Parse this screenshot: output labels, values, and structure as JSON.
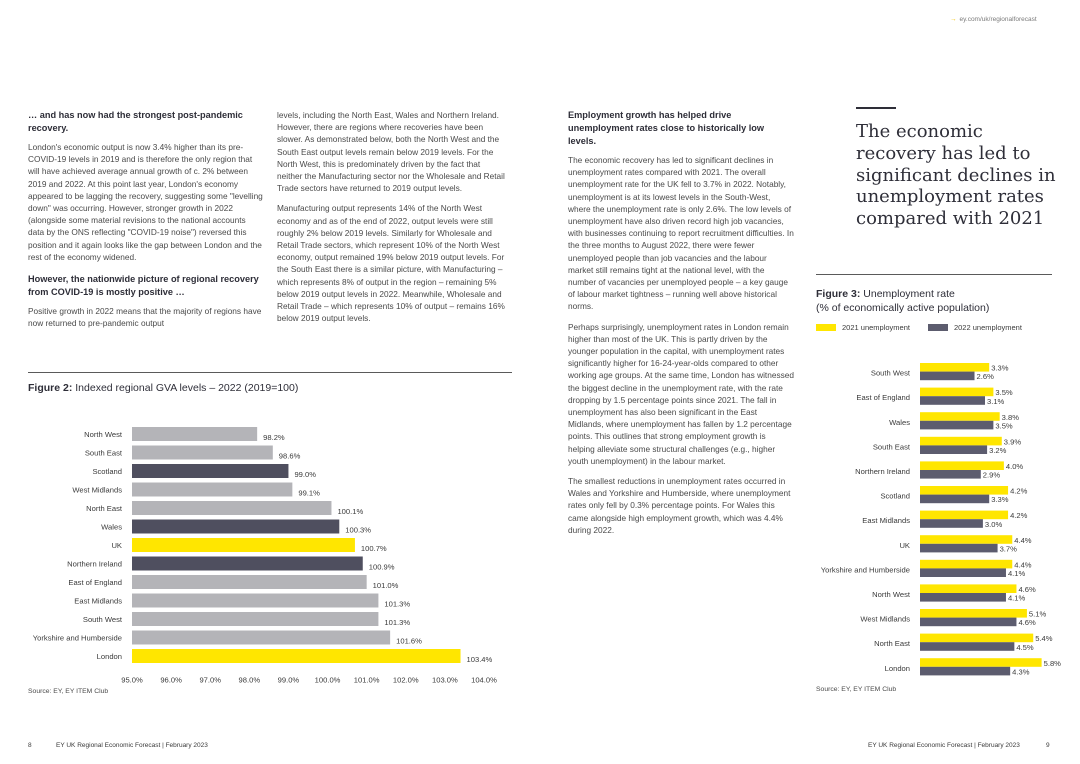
{
  "header": {
    "link": "ey.com/uk/regionalforecast"
  },
  "left_page": {
    "col1": {
      "heading1": "… and has now had the strongest post-pandemic recovery.",
      "para1": "London's economic output is now 3.4% higher than its pre-COVID-19 levels in 2019 and is therefore the only region that will have achieved average annual growth of c. 2% between 2019 and 2022. At this point last year, London's economy appeared to be lagging the recovery, suggesting some \"levelling down\" was occurring. However, stronger growth in 2022 (alongside some material revisions to the national accounts data by the ONS reflecting \"COVID-19 noise\") reversed this position and it again looks like the gap between London and the rest of the economy widened.",
      "heading2": "However, the nationwide picture of regional recovery from COVID-19 is mostly positive …",
      "para2": "Positive growth in 2022 means that the majority of regions have now returned to pre-pandemic output"
    },
    "col2": {
      "para1": "levels, including the North East, Wales and Northern Ireland. However, there are regions where recoveries have been slower. As demonstrated below, both the North West and the South East output levels remain below 2019 levels. For the North West, this is predominately driven by the fact that neither the Manufacturing sector nor the Wholesale and Retail Trade sectors have returned to 2019 output levels.",
      "para2": "Manufacturing output represents 14% of the North West economy and as of the end of 2022, output levels were still roughly 2% below 2019 levels. Similarly for Wholesale and Retail Trade sectors, which represent 10% of the North West economy, output remained 19% below 2019 output levels. For the South East there is a similar picture, with Manufacturing – which represents 8% of output in the region – remaining 5% below 2019 output levels in 2022. Meanwhile, Wholesale and Retail Trade – which represents 10% of output – remains 16% below 2019 output levels."
    },
    "figure2_label": "Figure 2:",
    "figure2_title": "Indexed regional GVA levels – 2022 (2019=100)",
    "source": "Source: EY, EY ITEM Club",
    "footer_page": "8",
    "footer_text": "EY UK Regional Economic Forecast | February 2023"
  },
  "right_page": {
    "col3": {
      "heading": "Employment growth has helped drive unemployment rates close to historically low levels.",
      "para1": "The economic recovery has led to significant declines in unemployment rates compared with 2021. The overall unemployment rate for the UK fell to 3.7% in 2022. Notably, unemployment is at its lowest levels in the South-West, where the unemployment rate is only 2.6%. The low levels of unemployment have also driven record high job vacancies, with businesses continuing to report recruitment difficulties. In the three months to August 2022, there were fewer unemployed people than job vacancies and the labour market still remains tight at the national level, with the number of vacancies per unemployed people – a key gauge of labour market tightness – running well above historical norms.",
      "para2": "Perhaps surprisingly, unemployment rates in London remain higher than most of the UK. This is partly driven by the younger population in the capital, with unemployment rates significantly higher for 16-24-year-olds compared to other working age groups. At the same time, London has witnessed the biggest decline in the unemployment rate, with the rate dropping by 1.5 percentage points since 2021. The fall in unemployment has also been significant in the East Midlands, where unemployment has fallen by 1.2 percentage points. This outlines that strong employment growth is helping alleviate some structural challenges (e.g., higher youth unemployment) in the labour market.",
      "para3": "The smallest reductions in unemployment rates occurred in Wales and Yorkshire and Humberside, where unemployment rates only fell by 0.3% percentage points. For Wales this came alongside high employment growth, which was 4.4% during 2022."
    },
    "pull_quote": "The economic recovery has led to significant declines in unemployment rates compared with 2021",
    "figure3_label": "Figure 3:",
    "figure3_title": "Unemployment rate",
    "figure3_subtitle": "(% of economically active population)",
    "legend_2021": "2021 unemployment",
    "legend_2022": "2022 unemployment",
    "source": "Source: EY, EY ITEM Club",
    "footer_text": "EY UK Regional Economic Forecast | February 2023",
    "footer_page": "9"
  },
  "colors": {
    "yellow": "#FFE600",
    "dark": "#5C5C6E",
    "grey": "#B4B4B8",
    "darkbar": "#4F4F5F"
  },
  "chart_data": [
    {
      "type": "bar",
      "orientation": "horizontal",
      "title": "Indexed regional GVA levels – 2022 (2019=100)",
      "categories": [
        "North West",
        "South East",
        "Scotland",
        "West Midlands",
        "North East",
        "Wales",
        "UK",
        "Northern Ireland",
        "East of England",
        "East Midlands",
        "South West",
        "Yorkshire and Humberside",
        "London"
      ],
      "values": [
        98.2,
        98.6,
        99.0,
        99.1,
        100.1,
        100.3,
        100.7,
        100.9,
        101.0,
        101.3,
        101.3,
        101.6,
        103.4
      ],
      "value_labels": [
        "98.2%",
        "98.6%",
        "99.0%",
        "99.1%",
        "100.1%",
        "100.3%",
        "100.7%",
        "100.9%",
        "101.0%",
        "101.3%",
        "101.3%",
        "101.6%",
        "103.4%"
      ],
      "bar_styles": [
        "grey",
        "grey",
        "dark",
        "grey",
        "grey",
        "dark",
        "yellow",
        "dark",
        "grey",
        "grey",
        "grey",
        "grey",
        "yellow"
      ],
      "xlim": [
        95,
        104
      ],
      "x_ticks": [
        "95.0%",
        "96.0%",
        "97.0%",
        "98.0%",
        "99.0%",
        "100.0%",
        "101.0%",
        "102.0%",
        "103.0%",
        "104.0%"
      ]
    },
    {
      "type": "bar",
      "orientation": "horizontal",
      "title": "Unemployment rate",
      "categories": [
        "South West",
        "East of England",
        "Wales",
        "South East",
        "Northern Ireland",
        "Scotland",
        "East Midlands",
        "UK",
        "Yorkshire and Humberside",
        "North West",
        "West Midlands",
        "North East",
        "London"
      ],
      "series": [
        {
          "name": "2021 unemployment",
          "values": [
            3.3,
            3.5,
            3.8,
            3.9,
            4.0,
            4.2,
            4.2,
            4.4,
            4.4,
            4.6,
            5.1,
            5.4,
            5.8
          ],
          "labels": [
            "3.3%",
            "3.5%",
            "3.8%",
            "3.9%",
            "4.0%",
            "4.2%",
            "4.2%",
            "4.4%",
            "4.4%",
            "4.6%",
            "5.1%",
            "5.4%",
            "5.8%"
          ]
        },
        {
          "name": "2022 unemployment",
          "values": [
            2.6,
            3.1,
            3.5,
            3.2,
            2.9,
            3.3,
            3.0,
            3.7,
            4.1,
            4.1,
            4.6,
            4.5,
            4.3
          ],
          "labels": [
            "2.6%",
            "3.1%",
            "3.5%",
            "3.2%",
            "2.9%",
            "3.3%",
            "3.0%",
            "3.7%",
            "4.1%",
            "4.1%",
            "4.6%",
            "4.5%",
            "4.3%"
          ]
        }
      ],
      "xlim": [
        0,
        6.2
      ]
    }
  ]
}
